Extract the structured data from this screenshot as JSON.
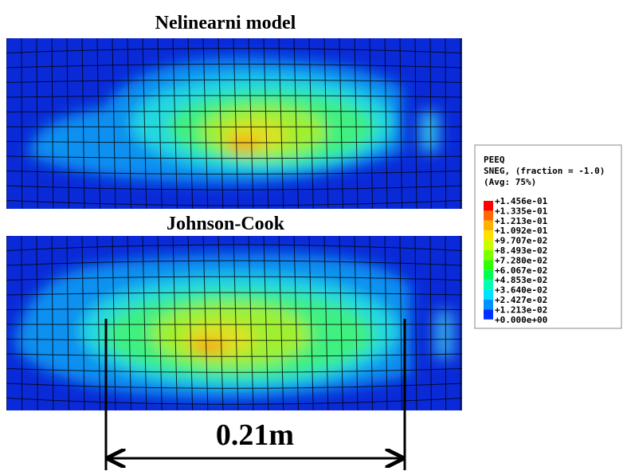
{
  "panels": [
    {
      "title": "Nelinearni model"
    },
    {
      "title": "Johnson-Cook"
    }
  ],
  "legend": {
    "variable": "PEEQ",
    "section": "SNEG, (fraction = -1.0)",
    "average": "(Avg: 75%)",
    "labels": [
      "+1.456e-01",
      "+1.335e-01",
      "+1.213e-01",
      "+1.092e-01",
      "+9.707e-02",
      "+8.493e-02",
      "+7.280e-02",
      "+6.067e-02",
      "+4.853e-02",
      "+3.640e-02",
      "+2.427e-02",
      "+1.213e-02",
      "+0.000e+00"
    ],
    "colors": [
      "#ff0000",
      "#ff6a00",
      "#ffb000",
      "#ffe000",
      "#c8ff00",
      "#7cff00",
      "#30ff00",
      "#00ff50",
      "#00ffb0",
      "#00e0ff",
      "#0090ff",
      "#0030ff"
    ]
  },
  "dimension": "0.21m"
}
